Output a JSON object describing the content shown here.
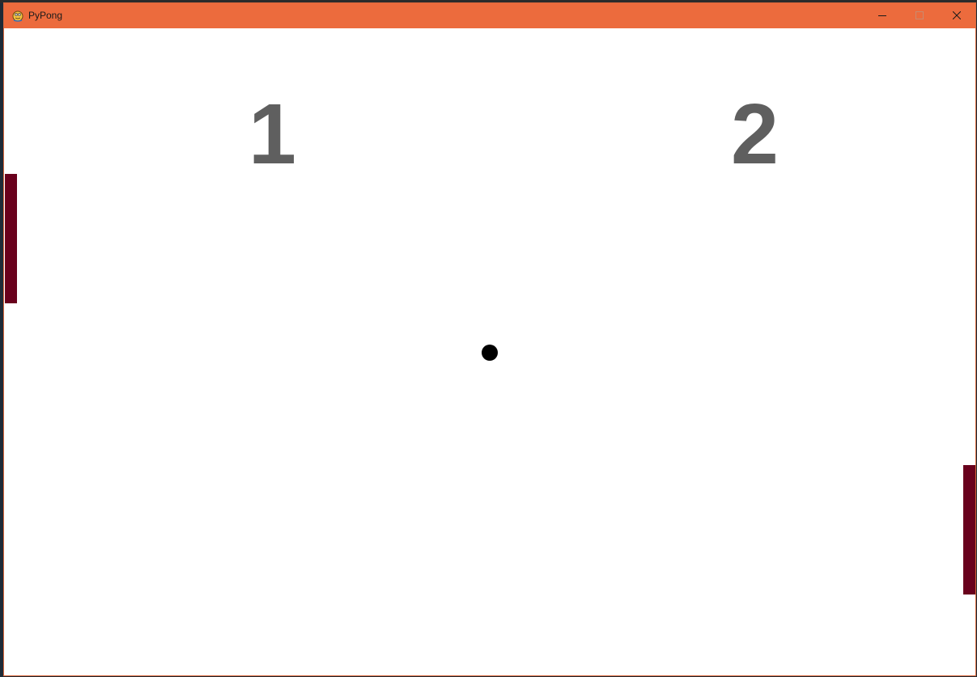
{
  "window": {
    "title": "PyPong",
    "icon": "pygame-snake-icon",
    "titlebar_color": "#ec6b3d",
    "controls": [
      "minimize-icon",
      "maximize-icon",
      "close-icon"
    ]
  },
  "game": {
    "background_color": "#ffffff",
    "score_color": "#5f5f5f",
    "paddle_color": "#69001c",
    "ball_color": "#000000",
    "score_left": "1",
    "score_right": "2"
  }
}
